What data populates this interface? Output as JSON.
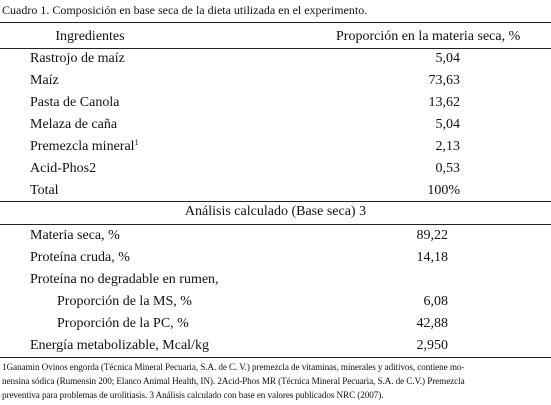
{
  "caption": "Cuadro 1. Composición en base seca de la dieta utilizada en el experimento.",
  "header": {
    "col1": "Ingredientes",
    "col2": "Proporción en la materia seca, %"
  },
  "ingredients": [
    {
      "label": "Rastrojo de maíz",
      "value": "5,04"
    },
    {
      "label": "Maíz",
      "value": "73,63"
    },
    {
      "label": "Pasta de Canola",
      "value": "13,62"
    },
    {
      "label": "Melaza de caña",
      "value": "5,04"
    },
    {
      "label": "Premezcla mineral",
      "sup": "1",
      "value": "2,13"
    },
    {
      "label": "Acid-Phos2",
      "value": "0,53"
    },
    {
      "label": "Total",
      "value": "100%"
    }
  ],
  "section_title": "Análisis calculado (Base seca) 3",
  "analysis": [
    {
      "label": "Materia seca, %",
      "value": "89,22"
    },
    {
      "label": "Proteína cruda, %",
      "value": "14,18"
    },
    {
      "label": "Proteína no degradable en rumen,"
    },
    {
      "label": "Proporción de la MS, %",
      "value": "6,08",
      "indent": true
    },
    {
      "label": "Proporción de la PC, %",
      "value": "42,88",
      "indent": true
    },
    {
      "label": "Energía metabolizable, Mcal/kg",
      "value": "2,950"
    }
  ],
  "footnote": [
    "1Ganamin Ovinos engorda (Técnica Mineral Pecuaria, S.A. de C. V.) premezcla de vitaminas, minerales y aditivos, contiene mo-",
    "nensina sódica (Rumensin 200; Elanco Animal Health, IN). 2Acid-Phos MR (Técnica Mineral Pecuaria, S.A. de C.V.) Premezcla",
    "preventiva para problemas de urolitiasis. 3  Análisis calculado con base en valores publicados NRC (2007)."
  ]
}
